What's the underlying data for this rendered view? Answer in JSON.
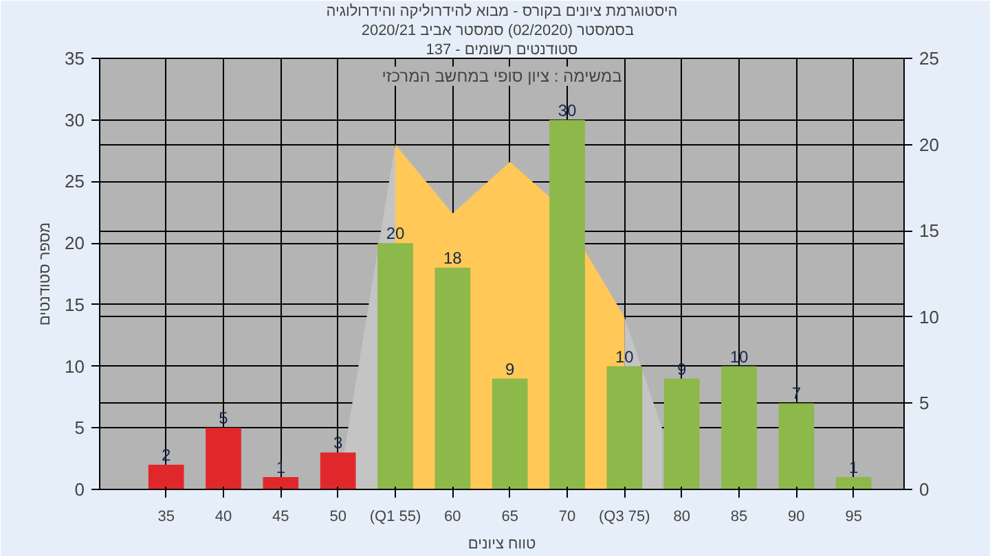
{
  "chart_data": {
    "type": "bar",
    "title": "היסטוגרמת ציונים בקורס - מבוא להידרוליקה והידרולוגיה",
    "subtitle": "בסמסטר  (02/2020)  סמסטר אביב 2020/21",
    "xlabel": "טווח ציונים",
    "ylabel": "מספר סטודנטים",
    "annotations": [
      "סטודנטים רשומים - 137",
      "במשימה : ציון סופי במחשב המרכזי"
    ],
    "x": [
      35,
      40,
      45,
      50,
      55,
      60,
      65,
      70,
      75,
      80,
      85,
      90,
      95
    ],
    "xlim": [
      29.2,
      99.4
    ],
    "xticks": [
      35,
      40,
      45,
      50,
      {
        "value": 55,
        "label": "(Q1 55)"
      },
      60,
      65,
      70,
      {
        "value": 75,
        "label": "(Q3 75)"
      },
      80,
      85,
      90,
      95
    ],
    "ylim": [
      0,
      35
    ],
    "yticks": [
      0,
      5,
      10,
      15,
      20,
      25,
      30,
      35
    ],
    "y2lim": [
      0,
      25
    ],
    "y2ticks": [
      0,
      5,
      10,
      15,
      20,
      25
    ],
    "series": [
      {
        "type": "area",
        "axis": "y2",
        "color": "#c4c4c4",
        "x": [
          50,
          55
        ],
        "values": [
          0,
          20
        ]
      },
      {
        "type": "area",
        "axis": "y2",
        "color": "#c4c4c4",
        "x": [
          75,
          78.3
        ],
        "values": [
          10,
          3.5
        ]
      },
      {
        "type": "area",
        "axis": "y2",
        "color": "#ffc857",
        "x": [
          55,
          60,
          65,
          68.4,
          71.4,
          75
        ],
        "values": [
          20,
          16,
          19,
          17,
          14,
          10
        ]
      },
      {
        "values": [
          2,
          5,
          1,
          3,
          20,
          18,
          9,
          30,
          10,
          9,
          10,
          7,
          1
        ],
        "value_labels": [
          "2",
          "5",
          "1",
          "3",
          "20",
          "18",
          "9",
          "30",
          "10",
          "9",
          "10",
          "7",
          "1"
        ],
        "colors": [
          "#e0282c",
          "#e0282c",
          "#e0282c",
          "#e0282c",
          "#8db84a",
          "#8db84a",
          "#8db84a",
          "#8db84a",
          "#8db84a",
          "#8db84a",
          "#8db84a",
          "#8db84a",
          "#8db84a"
        ]
      }
    ],
    "grid": true
  }
}
